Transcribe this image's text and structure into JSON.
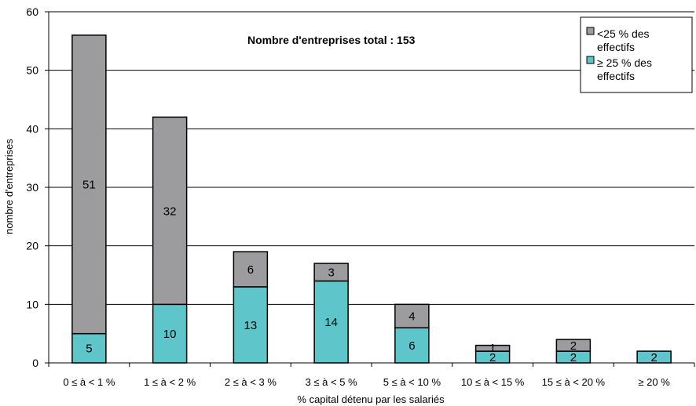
{
  "chart_data": {
    "type": "bar",
    "stacked": true,
    "title": "Nombre d'entreprises total : 153",
    "xlabel": "% capital détenu par les salariés",
    "ylabel": "nombre d'entreprises",
    "ylim": [
      0,
      60
    ],
    "yticks": [
      0,
      10,
      20,
      30,
      40,
      50,
      60
    ],
    "grid": true,
    "legend_position": "top-right",
    "categories": [
      "0 ≤ à < 1 %",
      "1 ≤ à < 2 %",
      "2 ≤ à < 3 %",
      "3 ≤ à < 5 %",
      "5 ≤ à < 10 %",
      "10 ≤ à < 15 %",
      "15 ≤ à < 20 %",
      "≥ 20 %"
    ],
    "series": [
      {
        "name": "≥ 25 % des effectifs",
        "legend_lines": [
          "≥ 25 % des",
          "effectifs"
        ],
        "color": "#5ec5cb",
        "values": [
          5,
          10,
          13,
          14,
          6,
          2,
          2,
          2
        ]
      },
      {
        "name": "<25 % des effectifs",
        "legend_lines": [
          "<25 % des",
          "effectifs"
        ],
        "color": "#9c9c9f",
        "values": [
          51,
          32,
          6,
          3,
          4,
          1,
          2,
          0
        ]
      }
    ]
  }
}
